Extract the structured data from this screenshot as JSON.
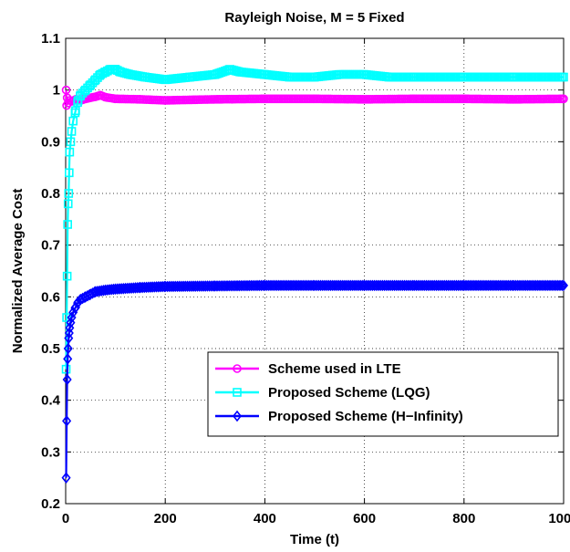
{
  "chart_data": {
    "type": "line",
    "title": "Rayleigh Noise, M = 5 Fixed",
    "xlabel": "Time (t)",
    "ylabel": "Normalized Average Cost",
    "xlim": [
      0,
      1000
    ],
    "ylim": [
      0.2,
      1.1
    ],
    "xticks": [
      0,
      200,
      400,
      600,
      800,
      1000
    ],
    "xtick_labels": [
      "0",
      "200",
      "400",
      "600",
      "800",
      "1000"
    ],
    "yticks": [
      0.2,
      0.3,
      0.4,
      0.5,
      0.6,
      0.7,
      0.8,
      0.9,
      1.0,
      1.1
    ],
    "ytick_labels": [
      "0.2",
      "0.3",
      "0.4",
      "0.5",
      "0.6",
      "0.7",
      "0.8",
      "0.9",
      "1",
      "1.1"
    ],
    "grid": true,
    "legend_position": "lower-right",
    "series": [
      {
        "name": "Scheme used in LTE",
        "color": "#ff00ff",
        "marker": "circle",
        "x": [
          1,
          2,
          3,
          5,
          8,
          12,
          20,
          30,
          40,
          50,
          60,
          70,
          80,
          100,
          150,
          200,
          300,
          400,
          500,
          600,
          700,
          800,
          900,
          1000
        ],
        "y": [
          1.0,
          0.97,
          0.985,
          0.975,
          0.98,
          0.978,
          0.982,
          0.98,
          0.983,
          0.985,
          0.987,
          0.99,
          0.986,
          0.983,
          0.982,
          0.98,
          0.982,
          0.983,
          0.983,
          0.982,
          0.983,
          0.983,
          0.982,
          0.983
        ]
      },
      {
        "name": "Proposed Scheme (LQG)",
        "color": "#00ffff",
        "marker": "square",
        "x": [
          1,
          2,
          3,
          4,
          5,
          6,
          7,
          8,
          10,
          12,
          15,
          20,
          25,
          30,
          40,
          50,
          60,
          70,
          80,
          90,
          100,
          110,
          130,
          160,
          200,
          250,
          300,
          330,
          350,
          400,
          450,
          500,
          550,
          600,
          650,
          700,
          800,
          900,
          1000
        ],
        "y": [
          0.46,
          0.56,
          0.64,
          0.74,
          0.78,
          0.8,
          0.84,
          0.88,
          0.9,
          0.92,
          0.94,
          0.96,
          0.98,
          0.99,
          1.0,
          1.01,
          1.02,
          1.03,
          1.035,
          1.04,
          1.04,
          1.035,
          1.03,
          1.025,
          1.02,
          1.025,
          1.03,
          1.04,
          1.035,
          1.03,
          1.025,
          1.025,
          1.03,
          1.03,
          1.025,
          1.025,
          1.025,
          1.025,
          1.025
        ]
      },
      {
        "name": "Proposed Scheme (H−Infinity)",
        "color": "#0000ff",
        "marker": "diamond",
        "x": [
          1,
          2,
          3,
          4,
          5,
          6,
          7,
          8,
          10,
          12,
          15,
          20,
          25,
          30,
          40,
          50,
          60,
          80,
          100,
          150,
          200,
          300,
          400,
          500,
          600,
          700,
          800,
          900,
          1000
        ],
        "y": [
          0.25,
          0.36,
          0.44,
          0.48,
          0.5,
          0.52,
          0.53,
          0.54,
          0.55,
          0.56,
          0.57,
          0.58,
          0.59,
          0.595,
          0.6,
          0.605,
          0.61,
          0.613,
          0.615,
          0.618,
          0.62,
          0.621,
          0.622,
          0.622,
          0.622,
          0.622,
          0.622,
          0.622,
          0.622
        ]
      }
    ]
  }
}
